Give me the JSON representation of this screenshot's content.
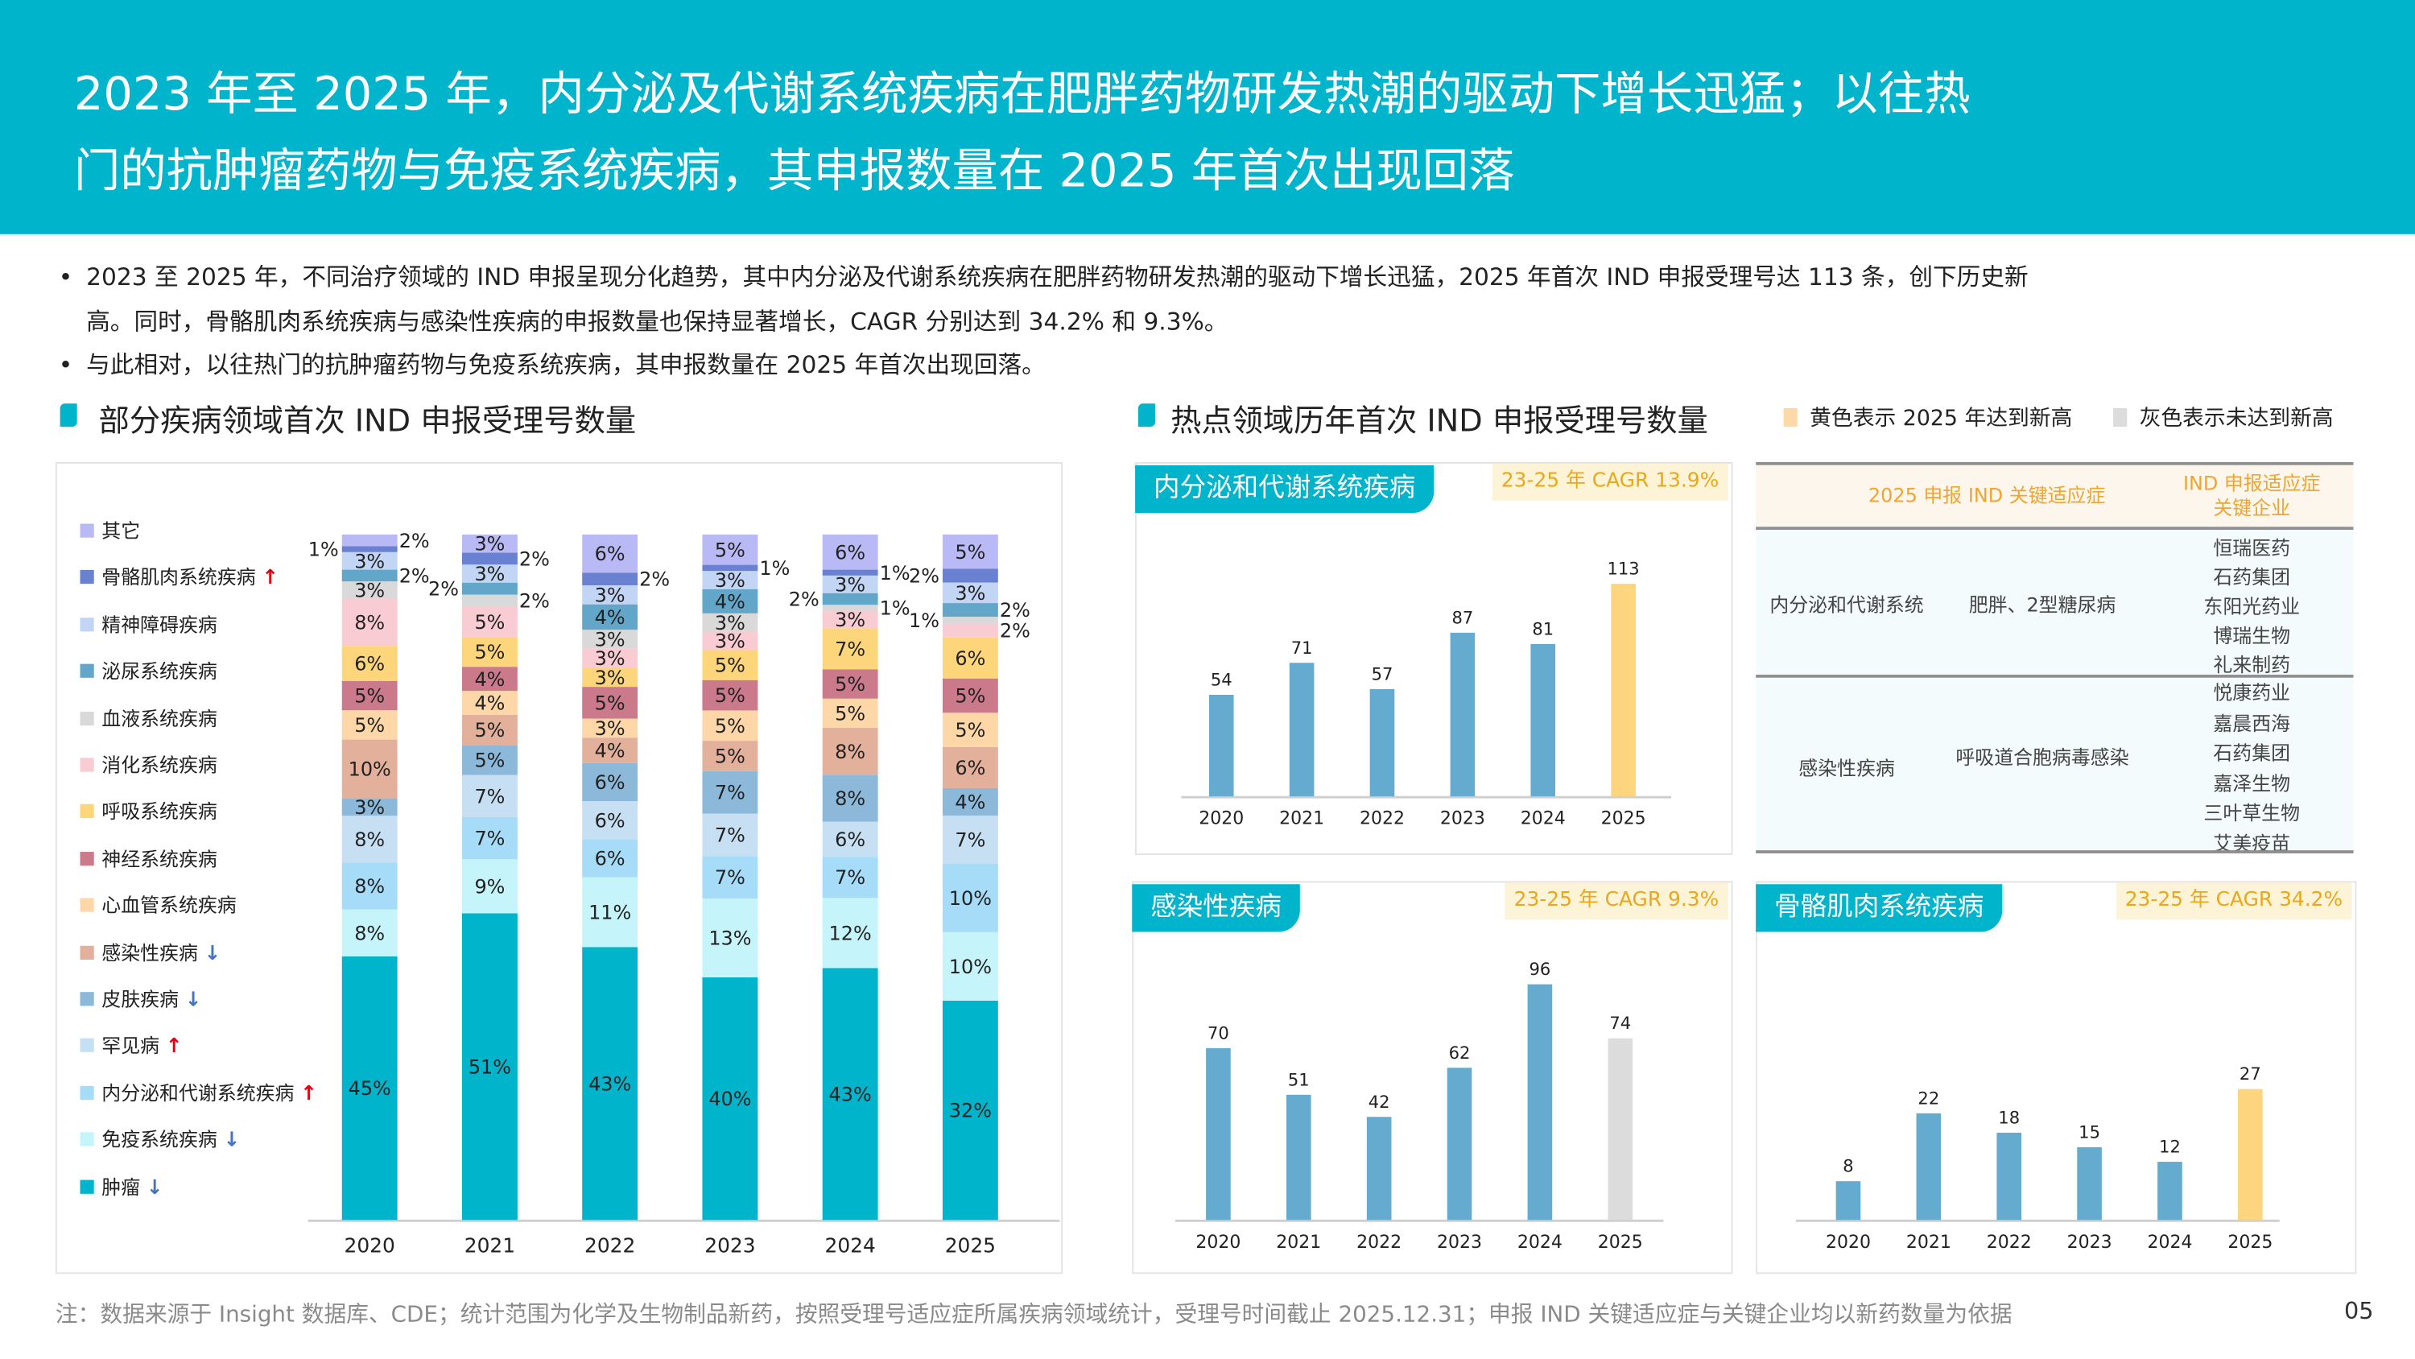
{
  "header": {
    "title_line1": "2023 年至 2025 年，内分泌及代谢系统疾病在肥胖药物研发热潮的驱动下增长迅猛；以往热",
    "title_line2": "门的抗肿瘤药物与免疫系统疾病，其申报数量在 2025 年首次出现回落"
  },
  "bullets": [
    "2023 至 2025 年，不同治疗领域的 IND 申报呈现分化趋势，其中内分泌及代谢系统疾病在肥胖药物研发热潮的驱动下增长迅猛，2025 年首次 IND 申报受理号达 113 条，创下历史新",
    "高。同时，骨骼肌肉系统疾病与感染性疾病的申报数量也保持显著增长，CAGR 分别达到 34.2% 和 9.3%。",
    "与此相对，以往热门的抗肿瘤药物与免疫系统疾病，其申报数量在 2025 年首次出现回落。"
  ],
  "left_section_title": "部分疾病领域首次 IND 申报受理号数量",
  "right_section_title": "热点领域历年首次 IND 申报受理号数量",
  "right_legend": {
    "yellow_label": "黄色表示 2025 年达到新高",
    "grey_label": "灰色表示未达到新高",
    "yellow_color": "#fdd57e",
    "grey_color": "#dcdcdc"
  },
  "colors": {
    "accent": "#00b4cc",
    "bar_blue": "#65abcf",
    "cagr_text": "#e9a81a",
    "up_arrow": "#e60012",
    "down_arrow": "#4472c4"
  },
  "chart_data": [
    {
      "type": "bar",
      "stacked": true,
      "unit": "%",
      "categories": [
        "2020",
        "2021",
        "2022",
        "2023",
        "2024",
        "2025"
      ],
      "series": [
        {
          "name": "肿瘤",
          "color": "#00b4cc",
          "trend": "down",
          "values": [
            45,
            51,
            43,
            40,
            43,
            32
          ]
        },
        {
          "name": "免疫系统疾病",
          "color": "#c6f4fb",
          "trend": "down",
          "values": [
            8,
            9,
            11,
            13,
            12,
            10
          ]
        },
        {
          "name": "内分泌和代谢系统疾病",
          "color": "#a6dcf8",
          "trend": "up",
          "values": [
            8,
            7,
            6,
            7,
            7,
            10
          ]
        },
        {
          "name": "罕见病",
          "color": "#c6dff2",
          "trend": "up",
          "values": [
            8,
            7,
            6,
            7,
            6,
            7
          ]
        },
        {
          "name": "皮肤疾病",
          "color": "#8cb9d9",
          "trend": "down",
          "values": [
            3,
            5,
            6,
            7,
            8,
            4
          ]
        },
        {
          "name": "感染性疾病",
          "color": "#e3b09b",
          "trend": "down",
          "values": [
            10,
            5,
            4,
            5,
            8,
            6
          ]
        },
        {
          "name": "心血管系统疾病",
          "color": "#fdd7a8",
          "trend": "",
          "values": [
            5,
            4,
            3,
            5,
            5,
            5
          ]
        },
        {
          "name": "神经系统疾病",
          "color": "#cb7a8c",
          "trend": "",
          "values": [
            5,
            4,
            5,
            5,
            5,
            5
          ]
        },
        {
          "name": "呼吸系统疾病",
          "color": "#fdd67c",
          "trend": "",
          "values": [
            6,
            5,
            3,
            5,
            7,
            6
          ]
        },
        {
          "name": "消化系统疾病",
          "color": "#f8ccd2",
          "trend": "",
          "values": [
            8,
            5,
            3,
            3,
            3,
            2
          ]
        },
        {
          "name": "血液系统疾病",
          "color": "#d9d9d9",
          "trend": "",
          "values": [
            3,
            2,
            3,
            3,
            1,
            1
          ]
        },
        {
          "name": "泌尿系统疾病",
          "color": "#62a7c9",
          "trend": "",
          "values": [
            2,
            2,
            4,
            4,
            2,
            2
          ]
        },
        {
          "name": "精神障碍疾病",
          "color": "#c2d5f5",
          "trend": "",
          "values": [
            3,
            3,
            3,
            3,
            3,
            3
          ]
        },
        {
          "name": "骨骼肌肉系统疾病",
          "color": "#6a80d0",
          "trend": "up",
          "values": [
            1,
            2,
            2,
            1,
            1,
            2
          ]
        },
        {
          "name": "其它",
          "color": "#b9b9f6",
          "trend": "",
          "values": [
            2,
            3,
            6,
            5,
            6,
            5
          ]
        }
      ],
      "legend": "left"
    },
    {
      "type": "bar",
      "title": "内分泌和代谢系统疾病",
      "cagr": "23-25 年 CAGR 13.9%",
      "categories": [
        "2020",
        "2021",
        "2022",
        "2023",
        "2024",
        "2025"
      ],
      "values": [
        54,
        71,
        57,
        87,
        81,
        113
      ],
      "colors": [
        "#65abcf",
        "#65abcf",
        "#65abcf",
        "#65abcf",
        "#65abcf",
        "#fdd57e"
      ]
    },
    {
      "type": "bar",
      "title": "感染性疾病",
      "cagr": "23-25 年 CAGR 9.3%",
      "categories": [
        "2020",
        "2021",
        "2022",
        "2023",
        "2024",
        "2025"
      ],
      "values": [
        70,
        51,
        42,
        62,
        96,
        74
      ],
      "colors": [
        "#65abcf",
        "#65abcf",
        "#65abcf",
        "#65abcf",
        "#65abcf",
        "#dcdcdc"
      ]
    },
    {
      "type": "bar",
      "title": "骨骼肌肉系统疾病",
      "cagr": "23-25 年 CAGR 34.2%",
      "categories": [
        "2020",
        "2021",
        "2022",
        "2023",
        "2024",
        "2025"
      ],
      "values": [
        8,
        22,
        18,
        15,
        12,
        27
      ],
      "colors": [
        "#65abcf",
        "#65abcf",
        "#65abcf",
        "#65abcf",
        "#65abcf",
        "#fdd57e"
      ]
    }
  ],
  "table": {
    "header_col2": "2025 申报 IND 关键适应症",
    "header_col3_line1": "IND 申报适应症",
    "header_col3_line2": "关键企业",
    "rows": [
      {
        "area": "内分泌和代谢系统",
        "indication": "肥胖、2型糖尿病",
        "companies": [
          "恒瑞医药",
          "石药集团",
          "东阳光药业",
          "博瑞生物",
          "礼来制药"
        ]
      },
      {
        "area": "感染性疾病",
        "indication": "呼吸道合胞病毒感染",
        "companies": [
          "悦康药业",
          "嘉晨西海",
          "石药集团",
          "嘉泽生物",
          "三叶草生物",
          "艾美疫苗"
        ]
      }
    ]
  },
  "footnote": "注：数据来源于 Insight 数据库、CDE；统计范围为化学及生物制品新药，按照受理号适应症所属疾病领域统计，受理号时间截止 2025.12.31；申报 IND 关键适应症与关键企业均以新药数量为依据",
  "page_number": "05"
}
